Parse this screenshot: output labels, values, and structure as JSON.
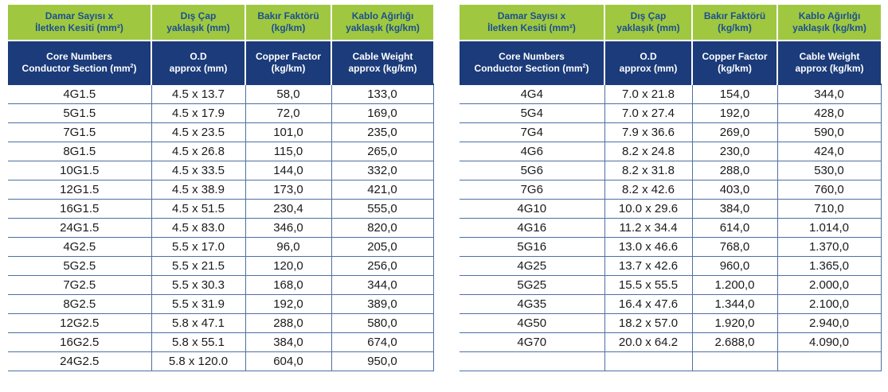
{
  "headers": {
    "tr": {
      "col1_line1": "Damar Sayısı x",
      "col1_line2": "İletken Kesiti (mm²)",
      "col2_line1": "Dış Çap",
      "col2_line2": "yaklaşık (mm)",
      "col3_line1": "Bakır Faktörü",
      "col3_line2": "(kg/km)",
      "col4_line1": "Kablo Ağırlığı",
      "col4_line2": "yaklaşık (kg/km)"
    },
    "en": {
      "col1_line1": "Core Numbers",
      "col1_line2": "Conductor Section (mm",
      "col1_sup": "2",
      "col1_close": ")",
      "col2_line1": "O.D",
      "col2_line2": "approx (mm)",
      "col3_line1": "Copper Factor",
      "col3_line2": "(kg/km)",
      "col4_line1": "Cable Weight",
      "col4_line2": "approx (kg/km)"
    }
  },
  "left_rows": [
    [
      "4G1.5",
      "4.5 x 13.7",
      "58,0",
      "133,0"
    ],
    [
      "5G1.5",
      "4.5 x 17.9",
      "72,0",
      "169,0"
    ],
    [
      "7G1.5",
      "4.5 x 23.5",
      "101,0",
      "235,0"
    ],
    [
      "8G1.5",
      "4.5 x 26.8",
      "115,0",
      "265,0"
    ],
    [
      "10G1.5",
      "4.5 x 33.5",
      "144,0",
      "332,0"
    ],
    [
      "12G1.5",
      "4.5 x 38.9",
      "173,0",
      "421,0"
    ],
    [
      "16G1.5",
      "4.5 x 51.5",
      "230,4",
      "555,0"
    ],
    [
      "24G1.5",
      "4.5 x 83.0",
      "346,0",
      "820,0"
    ],
    [
      "4G2.5",
      "5.5 x 17.0",
      "96,0",
      "205,0"
    ],
    [
      "5G2.5",
      "5.5 x 21.5",
      "120,0",
      "256,0"
    ],
    [
      "7G2.5",
      "5.5 x 30.3",
      "168,0",
      "344,0"
    ],
    [
      "8G2.5",
      "5.5 x 31.9",
      "192,0",
      "389,0"
    ],
    [
      "12G2.5",
      "5.8 x 47.1",
      "288,0",
      "580,0"
    ],
    [
      "16G2.5",
      "5.8 x 55.1",
      "384,0",
      "674,0"
    ],
    [
      "24G2.5",
      "5.8 x 120.0",
      "604,0",
      "950,0"
    ]
  ],
  "right_rows": [
    [
      "4G4",
      "7.0 x 21.8",
      "154,0",
      "344,0"
    ],
    [
      "5G4",
      "7.0 x 27.4",
      "192,0",
      "428,0"
    ],
    [
      "7G4",
      "7.9 x 36.6",
      "269,0",
      "590,0"
    ],
    [
      "4G6",
      "8.2 x 24.8",
      "230,0",
      "424,0"
    ],
    [
      "5G6",
      "8.2 x 31.8",
      "288,0",
      "530,0"
    ],
    [
      "7G6",
      "8.2 x 42.6",
      "403,0",
      "760,0"
    ],
    [
      "4G10",
      "10.0 x 29.6",
      "384,0",
      "710,0"
    ],
    [
      "4G16",
      "11.2 x 34.4",
      "614,0",
      "1.014,0"
    ],
    [
      "5G16",
      "13.0 x 46.6",
      "768,0",
      "1.370,0"
    ],
    [
      "4G25",
      "13.7 x 42.6",
      "960,0",
      "1.365,0"
    ],
    [
      "5G25",
      "15.5 x 55.5",
      "1.200,0",
      "2.000,0"
    ],
    [
      "4G35",
      "16.4 x 47.6",
      "1.344,0",
      "2.100,0"
    ],
    [
      "4G50",
      "18.2 x 57.0",
      "1.920,0",
      "2.940,0"
    ],
    [
      "4G70",
      "20.0 x 64.2",
      "2.688,0",
      "4.090,0"
    ],
    [
      "",
      "",
      "",
      ""
    ]
  ],
  "colors": {
    "header_green": "#9fc840",
    "header_green_text": "#1d4f91",
    "header_navy": "#1b3b7a",
    "grid_line": "#4e6fa3"
  }
}
